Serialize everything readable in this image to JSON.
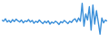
{
  "chart_data": {
    "type": "line",
    "x": [
      0,
      1,
      2,
      3,
      4,
      5,
      6,
      7,
      8,
      9,
      10,
      11,
      12,
      13,
      14,
      15,
      16,
      17,
      18,
      19,
      20,
      21,
      22,
      23,
      24,
      25,
      26,
      27,
      28,
      29,
      30,
      31,
      32,
      33,
      34,
      35,
      36,
      37,
      38,
      39,
      40,
      41,
      42,
      43,
      44,
      45,
      46,
      47,
      48,
      49,
      50,
      51,
      52,
      53,
      54,
      55,
      56,
      57,
      58,
      59
    ],
    "values": [
      55,
      52,
      58,
      50,
      54,
      49,
      56,
      51,
      57,
      53,
      50,
      55,
      48,
      53,
      51,
      56,
      50,
      54,
      47,
      52,
      49,
      55,
      50,
      46,
      52,
      48,
      53,
      45,
      50,
      47,
      52,
      49,
      44,
      51,
      48,
      54,
      50,
      46,
      52,
      49,
      55,
      58,
      50,
      60,
      52,
      96,
      40,
      70,
      55,
      88,
      30,
      92,
      45,
      78,
      50,
      20,
      60,
      48,
      55,
      52
    ],
    "color": "#3a8fd9",
    "xlim": [
      0,
      59
    ],
    "ylim": [
      10,
      100
    ],
    "tick_labels": false,
    "grid": false
  }
}
